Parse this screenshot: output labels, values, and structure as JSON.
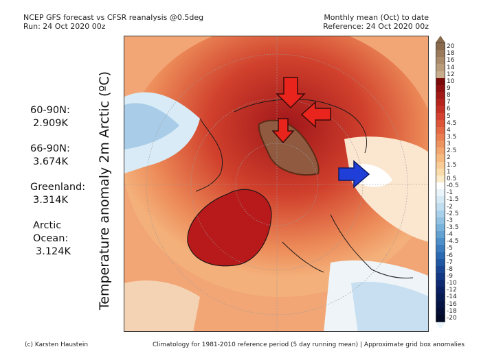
{
  "header": {
    "title": "NCEP GFS forecast vs CFSR reanalysis @0.5deg",
    "run": "Run: 24 Oct 2020 00z",
    "period": "Monthly mean (Oct) to date",
    "reference": "Reference: 24 Oct 2020 00z"
  },
  "axis_label": "Temperature anomaly 2m Arctic (ºC)",
  "stats": [
    {
      "region": "60-90N:",
      "value": "2.909K"
    },
    {
      "region": "66-90N:",
      "value": "3.674K"
    },
    {
      "region": "Greenland:",
      "value": "3.314K"
    },
    {
      "region": "Arctic Ocean:",
      "value": "3.124K"
    }
  ],
  "colorbar": {
    "ticks": [
      "20",
      "18",
      "16",
      "14",
      "12",
      "10",
      "9",
      "8",
      "7",
      "6",
      "5",
      "4.5",
      "4",
      "3.5",
      "3",
      "2.5",
      "2",
      "1.5",
      "1",
      "0.5",
      "-0.5",
      "-1",
      "-1.5",
      "-2",
      "-2.5",
      "-3",
      "-3.5",
      "-4",
      "-4.5",
      "-5",
      "-6",
      "-7",
      "-8",
      "-9",
      "-10",
      "-12",
      "-14",
      "-16",
      "-18",
      "-20"
    ],
    "colors": [
      "#8a6a4c",
      "#9a7a5a",
      "#a98b6a",
      "#b99c7a",
      "#c8ad8c",
      "#7a0a0a",
      "#8e1010",
      "#a21a16",
      "#b5241c",
      "#c53024",
      "#d4412e",
      "#dd5538",
      "#e46a44",
      "#ea7e50",
      "#ef935e",
      "#f3a76e",
      "#f6ba80",
      "#f8cc94",
      "#fadcaa",
      "#fcebc8",
      "#ffffff",
      "#eaf4fb",
      "#d6eaf6",
      "#c0def0",
      "#a9d0ea",
      "#91c2e3",
      "#79b2db",
      "#62a1d2",
      "#4d8fc8",
      "#3a7cbd",
      "#2b69b0",
      "#2057a2",
      "#184693",
      "#123783",
      "#0d2a73",
      "#0a2062",
      "#081a52",
      "#061443",
      "#050f35",
      "#040b28"
    ]
  },
  "footer": {
    "credit": "(c) Karsten Haustein",
    "note": "Climatology for 1981-2010 reference period (5 day running mean) | Approximate grid box anomalies"
  }
}
